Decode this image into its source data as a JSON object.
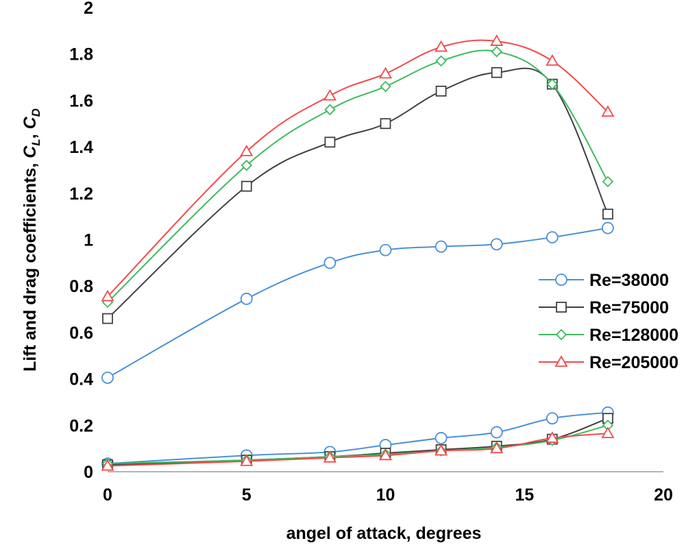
{
  "chart_data": {
    "type": "line",
    "title": "",
    "xlabel": "angel of attack, degrees",
    "ylabel": {
      "prefix": "Lift and drag coefficients, ",
      "cl_main": "C",
      "cl_sub": "L",
      "sep": ", ",
      "cd_main": "C",
      "cd_sub": "D"
    },
    "xlim": [
      0,
      20
    ],
    "ylim": [
      0,
      2
    ],
    "xticks": [
      "0",
      "5",
      "10",
      "15",
      "20"
    ],
    "yticks": [
      "0",
      "0.2",
      "0.4",
      "0.6",
      "0.8",
      "1",
      "1.2",
      "1.4",
      "1.6",
      "1.8",
      "2"
    ],
    "grid": false,
    "legend_position": "right",
    "series": [
      {
        "name": "Re=38000",
        "color": "#4a90d9",
        "marker": "circle",
        "x": [
          0,
          5,
          8,
          10,
          12,
          14,
          16,
          18
        ],
        "lift": [
          0.405,
          0.745,
          0.9,
          0.955,
          0.97,
          0.98,
          1.01,
          1.05
        ],
        "drag": [
          0.035,
          0.07,
          0.085,
          0.115,
          0.145,
          0.17,
          0.23,
          0.255
        ]
      },
      {
        "name": "Re=75000",
        "color": "#404040",
        "marker": "square",
        "x": [
          0,
          5,
          8,
          10,
          12,
          14,
          16,
          18
        ],
        "lift": [
          0.66,
          1.23,
          1.42,
          1.5,
          1.64,
          1.72,
          1.67,
          1.11
        ],
        "drag": [
          0.03,
          0.05,
          0.065,
          0.08,
          0.095,
          0.11,
          0.14,
          0.23
        ]
      },
      {
        "name": "Re=128000",
        "color": "#3dbb5c",
        "marker": "diamond",
        "x": [
          0,
          5,
          8,
          10,
          12,
          14,
          16,
          18
        ],
        "lift": [
          0.73,
          1.32,
          1.56,
          1.66,
          1.77,
          1.81,
          1.67,
          1.25
        ],
        "drag": [
          0.035,
          0.05,
          0.065,
          0.075,
          0.09,
          0.105,
          0.135,
          0.2
        ]
      },
      {
        "name": "Re=205000",
        "color": "#f24a4a",
        "marker": "triangle",
        "x": [
          0,
          5,
          8,
          10,
          12,
          14,
          16,
          18
        ],
        "lift": [
          0.755,
          1.38,
          1.62,
          1.715,
          1.83,
          1.855,
          1.77,
          1.55
        ],
        "drag": [
          0.025,
          0.045,
          0.06,
          0.07,
          0.09,
          0.1,
          0.145,
          0.165
        ]
      }
    ]
  }
}
